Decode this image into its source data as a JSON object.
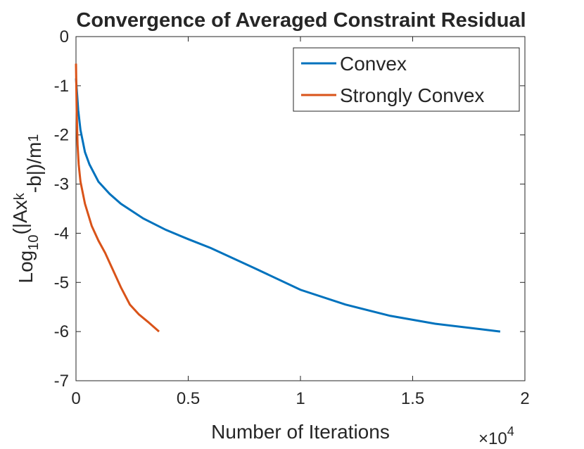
{
  "chart_data": {
    "type": "line",
    "title": "Convergence of Averaged Constraint Residual",
    "xlabel": "Number of Iterations",
    "ylabel": [
      "Log",
      "10",
      "(|Ax",
      "k",
      "-b|)/m",
      "1"
    ],
    "x_multiplier": {
      "base": "×10",
      "exponent": "4"
    },
    "xlim": [
      0,
      2
    ],
    "xticks": [
      0,
      0.5,
      1,
      1.5,
      2
    ],
    "ylim": [
      -7,
      0
    ],
    "yticks": [
      -7,
      -6,
      -5,
      -4,
      -3,
      -2,
      -1,
      0
    ],
    "legend": "northeast",
    "series": [
      {
        "name": "Convex",
        "color": "#0072bd",
        "x": [
          0,
          0.01,
          0.02,
          0.04,
          0.06,
          0.1,
          0.15,
          0.2,
          0.3,
          0.4,
          0.5,
          0.6,
          0.8,
          1.0,
          1.2,
          1.4,
          1.6,
          1.8,
          1.89
        ],
        "values": [
          -0.85,
          -1.5,
          -1.9,
          -2.35,
          -2.6,
          -2.95,
          -3.2,
          -3.4,
          -3.7,
          -3.93,
          -4.12,
          -4.3,
          -4.72,
          -5.15,
          -5.45,
          -5.68,
          -5.84,
          -5.95,
          -6.0
        ]
      },
      {
        "name": "Strongly Convex",
        "color": "#d95319",
        "x": [
          0,
          0.003,
          0.007,
          0.012,
          0.02,
          0.04,
          0.07,
          0.1,
          0.13,
          0.16,
          0.2,
          0.24,
          0.28,
          0.32,
          0.37
        ],
        "values": [
          -0.55,
          -1.5,
          -2.2,
          -2.6,
          -2.95,
          -3.4,
          -3.85,
          -4.15,
          -4.4,
          -4.7,
          -5.1,
          -5.45,
          -5.65,
          -5.8,
          -6.0
        ]
      }
    ]
  }
}
